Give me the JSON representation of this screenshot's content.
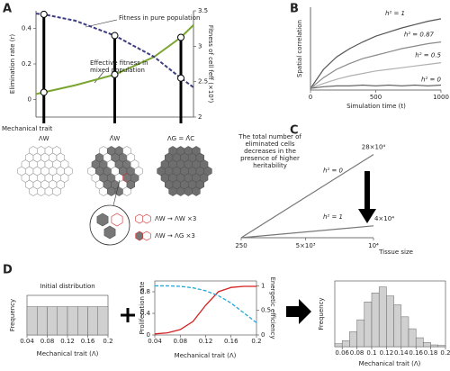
{
  "a": {
    "letter": "A",
    "chart": {
      "type": "line",
      "x_label": "Mechanical trait",
      "y_label": "Elimination rate (r)",
      "y2_label": "Fitness of cell feff (×10³)",
      "annotations": [
        "Fitness in pure population",
        "Effective fitness in",
        "mixed population"
      ],
      "xlim": [
        0,
        1
      ],
      "ylim": [
        -0.1,
        0.5
      ],
      "yticks": [
        0,
        0.2,
        0.4
      ],
      "y2lim": [
        2,
        3.5
      ],
      "y2ticks": [
        2,
        2.5,
        3,
        3.5
      ],
      "xticks": [
        {
          "value": 0.05,
          "label": "ΛW"
        },
        {
          "value": 0.5,
          "label": "Λ̂W"
        },
        {
          "value": 0.92,
          "label": "ΛG = Λ̂C"
        }
      ],
      "x": [
        0,
        0.05,
        0.25,
        0.5,
        0.75,
        0.92,
        1
      ],
      "series": [
        {
          "color": "#7aa530",
          "values": [
            0.03,
            0.04,
            0.08,
            0.14,
            0.24,
            0.35,
            0.42
          ]
        },
        {
          "color": "#3d3d80",
          "dash": true,
          "axis": "y2",
          "values": [
            3.46,
            3.45,
            3.36,
            3.15,
            2.85,
            2.55,
            2.42
          ]
        }
      ]
    },
    "diagram": {
      "labels": [
        "ΛW → ΛW  ×3",
        "ΛW → ΛG  ×3"
      ]
    }
  },
  "b": {
    "letter": "B",
    "chart": {
      "type": "line",
      "x_label": "Simulation time (t)",
      "y_label": "Spatial correlation",
      "xlim": [
        0,
        1000
      ],
      "xticks": [
        0,
        500,
        1000
      ],
      "ylim": [
        0,
        1
      ],
      "x": [
        0,
        100,
        200,
        300,
        400,
        500,
        600,
        700,
        800,
        900,
        1000
      ],
      "series": [
        {
          "name": "h² = 1",
          "color": "#555555",
          "values": [
            0.02,
            0.25,
            0.4,
            0.5,
            0.58,
            0.65,
            0.7,
            0.75,
            0.79,
            0.83,
            0.86
          ]
        },
        {
          "name": "h² = 0.87",
          "color": "#8a8a8a",
          "values": [
            0.02,
            0.15,
            0.25,
            0.32,
            0.38,
            0.42,
            0.46,
            0.5,
            0.53,
            0.56,
            0.58
          ]
        },
        {
          "name": "h² = 0.5",
          "color": "#b0b0b0",
          "values": [
            0.02,
            0.08,
            0.13,
            0.17,
            0.2,
            0.23,
            0.25,
            0.27,
            0.29,
            0.31,
            0.33
          ]
        },
        {
          "name": "h² = 0",
          "color": "#666666",
          "values": [
            0.02,
            0.04,
            0.05,
            0.05,
            0.06,
            0.05,
            0.06,
            0.05,
            0.06,
            0.05,
            0.06
          ]
        }
      ]
    }
  },
  "c": {
    "letter": "C",
    "chart": {
      "type": "line",
      "x_label": "Tissue size",
      "annotation_lines": [
        "The total number of",
        "eliminated cells",
        "decreases in the",
        "presence of higher",
        "heritability"
      ],
      "xlim": [
        250,
        10000
      ],
      "xticks": [
        250,
        {
          "value": 5000,
          "label": "5×10³"
        },
        {
          "value": 10000,
          "label": "10⁴"
        }
      ],
      "ylim": [
        0,
        300000
      ],
      "x": [
        250,
        10000
      ],
      "value_label_color": "#d42a2a",
      "series": [
        {
          "name": "h² = 0",
          "color": "#777777",
          "values": [
            0,
            280000
          ],
          "value_labels": [
            null,
            "28×10⁴"
          ]
        },
        {
          "name": "h² = 1",
          "color": "#777777",
          "values": [
            0,
            40000
          ],
          "value_labels": [
            null,
            "4×10⁴"
          ]
        }
      ]
    }
  },
  "d": {
    "letter": "D",
    "charts": [
      {
        "type": "histogram",
        "title": "Initial distribution",
        "y_label": "Frequency",
        "x_label": "Mechanical trait (Λ)",
        "bins": [
          0.04,
          0.06,
          0.08,
          0.1,
          0.12,
          0.14,
          0.16,
          0.18,
          0.2
        ],
        "values": [
          0.5,
          0.5,
          0.5,
          0.5,
          0.5,
          0.5,
          0.5,
          0.5
        ],
        "xlim": [
          0.04,
          0.2
        ],
        "xticks": [
          0.04,
          0.08,
          0.12,
          0.16,
          0.2
        ],
        "ylim": [
          0,
          0.7
        ],
        "color": "#d0d0d0"
      },
      {
        "type": "line",
        "x_label": "Mechanical trait (Λ)",
        "y_label": "Proliferation rate",
        "y2_label": "Energetic efficiency",
        "xlim": [
          0.04,
          0.2
        ],
        "xticks": [
          0.04,
          0.08,
          0.12,
          0.16,
          0.2
        ],
        "ylim": [
          0,
          1
        ],
        "yticks": [
          0,
          0.4,
          0.8
        ],
        "y2lim": [
          0,
          1.1
        ],
        "y2ticks": [
          0,
          0.5,
          1
        ],
        "x": [
          0.04,
          0.06,
          0.08,
          0.1,
          0.12,
          0.14,
          0.16,
          0.18,
          0.2
        ],
        "series": [
          {
            "color": "#d42020",
            "values": [
              0.02,
              0.04,
              0.1,
              0.25,
              0.55,
              0.8,
              0.88,
              0.9,
              0.9
            ]
          },
          {
            "color": "#22a8d8",
            "dash": true,
            "axis": "y2",
            "values": [
              1,
              1,
              0.99,
              0.96,
              0.9,
              0.8,
              0.65,
              0.45,
              0.25
            ]
          }
        ]
      },
      {
        "type": "histogram",
        "y_label": "Frequency",
        "x_label": "Mechanical trait (Λ)",
        "bins": [
          0.05,
          0.06,
          0.07,
          0.08,
          0.09,
          0.1,
          0.11,
          0.12,
          0.13,
          0.14,
          0.15,
          0.16,
          0.17,
          0.18,
          0.19,
          0.2
        ],
        "values": [
          0.05,
          0.1,
          0.25,
          0.45,
          0.75,
          0.9,
          1.0,
          0.85,
          0.7,
          0.5,
          0.3,
          0.15,
          0.07,
          0.03,
          0.02
        ],
        "xlim": [
          0.05,
          0.2
        ],
        "xticks": [
          0.06,
          0.08,
          0.1,
          0.12,
          0.14,
          0.16,
          0.18,
          0.2
        ],
        "ylim": [
          0,
          1.1
        ],
        "color": "#d0d0d0"
      }
    ]
  }
}
